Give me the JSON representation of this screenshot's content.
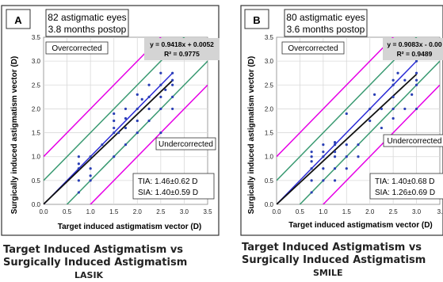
{
  "chart_data": [
    {
      "type": "scatter",
      "panel_letter": "A",
      "header_line1": "82 astigmatic eyes",
      "header_line2": "3.8 months postop",
      "xlabel": "Target induced astigmatism vector (D)",
      "ylabel": "Surgically induced astigmatism vector (D)",
      "xlim": [
        0,
        3.5
      ],
      "ylim": [
        0,
        3.5
      ],
      "x_ticks": [
        "0.0",
        "0.5",
        "1.0",
        "1.5",
        "2.0",
        "2.5",
        "3.0",
        "3.5"
      ],
      "y_ticks": [
        "0.0",
        "0.5",
        "1.0",
        "1.5",
        "2.0",
        "2.5",
        "3.0",
        "3.5"
      ],
      "grid": true,
      "equation": "y = 0.9418x + 0.0052",
      "r_squared": "R² = 0.9775",
      "over_label": "Overcorrected",
      "under_label": "Undercorrected",
      "tia": "TIA: 1.46±0.62 D",
      "sia": "SIA: 1.40±0.59 D",
      "fit": {
        "slope": 0.9418,
        "intercept": 0.0052,
        "x_range": [
          0,
          2.75
        ]
      },
      "reference_lines": [
        {
          "offset": 0,
          "color": "#2b2bd6",
          "x_range": [
            0,
            2.75
          ]
        },
        {
          "offset": 0.5,
          "color": "#3a9a72"
        },
        {
          "offset": -0.5,
          "color": "#3a9a72"
        },
        {
          "offset": 1.0,
          "color": "#e600e6"
        },
        {
          "offset": -1.0,
          "color": "#e600e6"
        }
      ],
      "points": [
        [
          0.75,
          0.25
        ],
        [
          0.75,
          0.5
        ],
        [
          0.75,
          0.75
        ],
        [
          0.75,
          0.85
        ],
        [
          0.75,
          1.0
        ],
        [
          1.0,
          0.5
        ],
        [
          1.0,
          0.6
        ],
        [
          1.0,
          0.75
        ],
        [
          1.0,
          1.0
        ],
        [
          1.25,
          1.25
        ],
        [
          1.5,
          1.0
        ],
        [
          1.5,
          1.5
        ],
        [
          1.5,
          1.6
        ],
        [
          1.5,
          1.75
        ],
        [
          1.6,
          1.5
        ],
        [
          1.75,
          1.25
        ],
        [
          1.75,
          1.6
        ],
        [
          1.75,
          1.8
        ],
        [
          1.75,
          2.0
        ],
        [
          2.0,
          1.5
        ],
        [
          2.0,
          1.75
        ],
        [
          2.0,
          2.0
        ],
        [
          2.1,
          2.2
        ],
        [
          2.25,
          1.75
        ],
        [
          2.25,
          2.0
        ],
        [
          2.25,
          2.25
        ],
        [
          2.25,
          2.5
        ],
        [
          2.5,
          2.0
        ],
        [
          2.5,
          2.25
        ],
        [
          2.5,
          2.5
        ],
        [
          2.5,
          2.75
        ],
        [
          2.6,
          2.4
        ],
        [
          2.75,
          2.0
        ],
        [
          2.75,
          2.25
        ],
        [
          2.75,
          2.5
        ],
        [
          2.75,
          2.6
        ],
        [
          2.75,
          2.75
        ],
        [
          2.5,
          1.5
        ],
        [
          2.0,
          2.3
        ],
        [
          1.5,
          1.9
        ]
      ],
      "caption_line1": "Target Induced Astigmatism vs",
      "caption_line2": "Surgically Induced Astigmatism",
      "caption_line3": "LASIK"
    },
    {
      "type": "scatter",
      "panel_letter": "B",
      "header_line1": "80 astigmatic eyes",
      "header_line2": "3.6 months postop",
      "xlabel": "Target induced astigmatism vector (D)",
      "ylabel": "Surgically induced astigmatism vector (D)",
      "xlim": [
        0,
        3.5
      ],
      "ylim": [
        0,
        3.5
      ],
      "x_ticks": [
        "0.0",
        "0.5",
        "1.0",
        "1.5",
        "2.0",
        "2.5",
        "3.0",
        "3."
      ],
      "y_ticks": [
        "0.0",
        "0.5",
        "1.0",
        "1.5",
        "2.0",
        "2.5",
        "3.0",
        "3.5"
      ],
      "grid": true,
      "equation": "y = 0.9083x - 0.00",
      "r_squared": "R² = 0.9489",
      "over_label": "Overcorrected",
      "under_label": "Undercorrected",
      "tia": "TIA: 1.40±0.68 D",
      "sia": "SIA: 1.26±0.69 D",
      "fit": {
        "slope": 0.9083,
        "intercept": 0.0,
        "x_range": [
          0,
          3.0
        ]
      },
      "reference_lines": [
        {
          "offset": 0,
          "color": "#2b2bd6",
          "x_range": [
            0,
            3.0
          ]
        },
        {
          "offset": 0.5,
          "color": "#3a9a72"
        },
        {
          "offset": -0.5,
          "color": "#3a9a72"
        },
        {
          "offset": 1.0,
          "color": "#e600e6"
        },
        {
          "offset": -1.0,
          "color": "#e600e6"
        }
      ],
      "points": [
        [
          0.75,
          0.25
        ],
        [
          0.75,
          0.5
        ],
        [
          0.75,
          0.75
        ],
        [
          0.75,
          0.9
        ],
        [
          0.75,
          1.0
        ],
        [
          0.75,
          1.1
        ],
        [
          1.0,
          0.5
        ],
        [
          1.0,
          0.75
        ],
        [
          1.0,
          1.0
        ],
        [
          1.0,
          1.1
        ],
        [
          1.0,
          1.25
        ],
        [
          1.25,
          0.5
        ],
        [
          1.25,
          0.75
        ],
        [
          1.25,
          1.0
        ],
        [
          1.25,
          1.1
        ],
        [
          1.25,
          1.25
        ],
        [
          1.25,
          1.3
        ],
        [
          1.5,
          0.75
        ],
        [
          1.5,
          1.0
        ],
        [
          1.5,
          1.25
        ],
        [
          1.5,
          1.9
        ],
        [
          1.75,
          1.0
        ],
        [
          1.75,
          1.25
        ],
        [
          2.0,
          1.75
        ],
        [
          2.0,
          2.0
        ],
        [
          2.1,
          2.3
        ],
        [
          2.25,
          1.6
        ],
        [
          2.25,
          2.0
        ],
        [
          2.5,
          2.0
        ],
        [
          2.5,
          2.25
        ],
        [
          2.5,
          2.5
        ],
        [
          2.5,
          2.6
        ],
        [
          2.6,
          2.75
        ],
        [
          2.75,
          2.0
        ],
        [
          2.75,
          2.6
        ],
        [
          3.0,
          2.0
        ],
        [
          3.0,
          2.5
        ],
        [
          3.0,
          2.6
        ],
        [
          3.0,
          2.75
        ],
        [
          2.9,
          2.3
        ],
        [
          2.5,
          1.8
        ],
        [
          3.0,
          3.0
        ]
      ],
      "caption_line1": "Target Induced Astigmatism vs",
      "caption_line2": "Surgically Induced Astigmatism",
      "caption_line3": "SMILE"
    }
  ]
}
